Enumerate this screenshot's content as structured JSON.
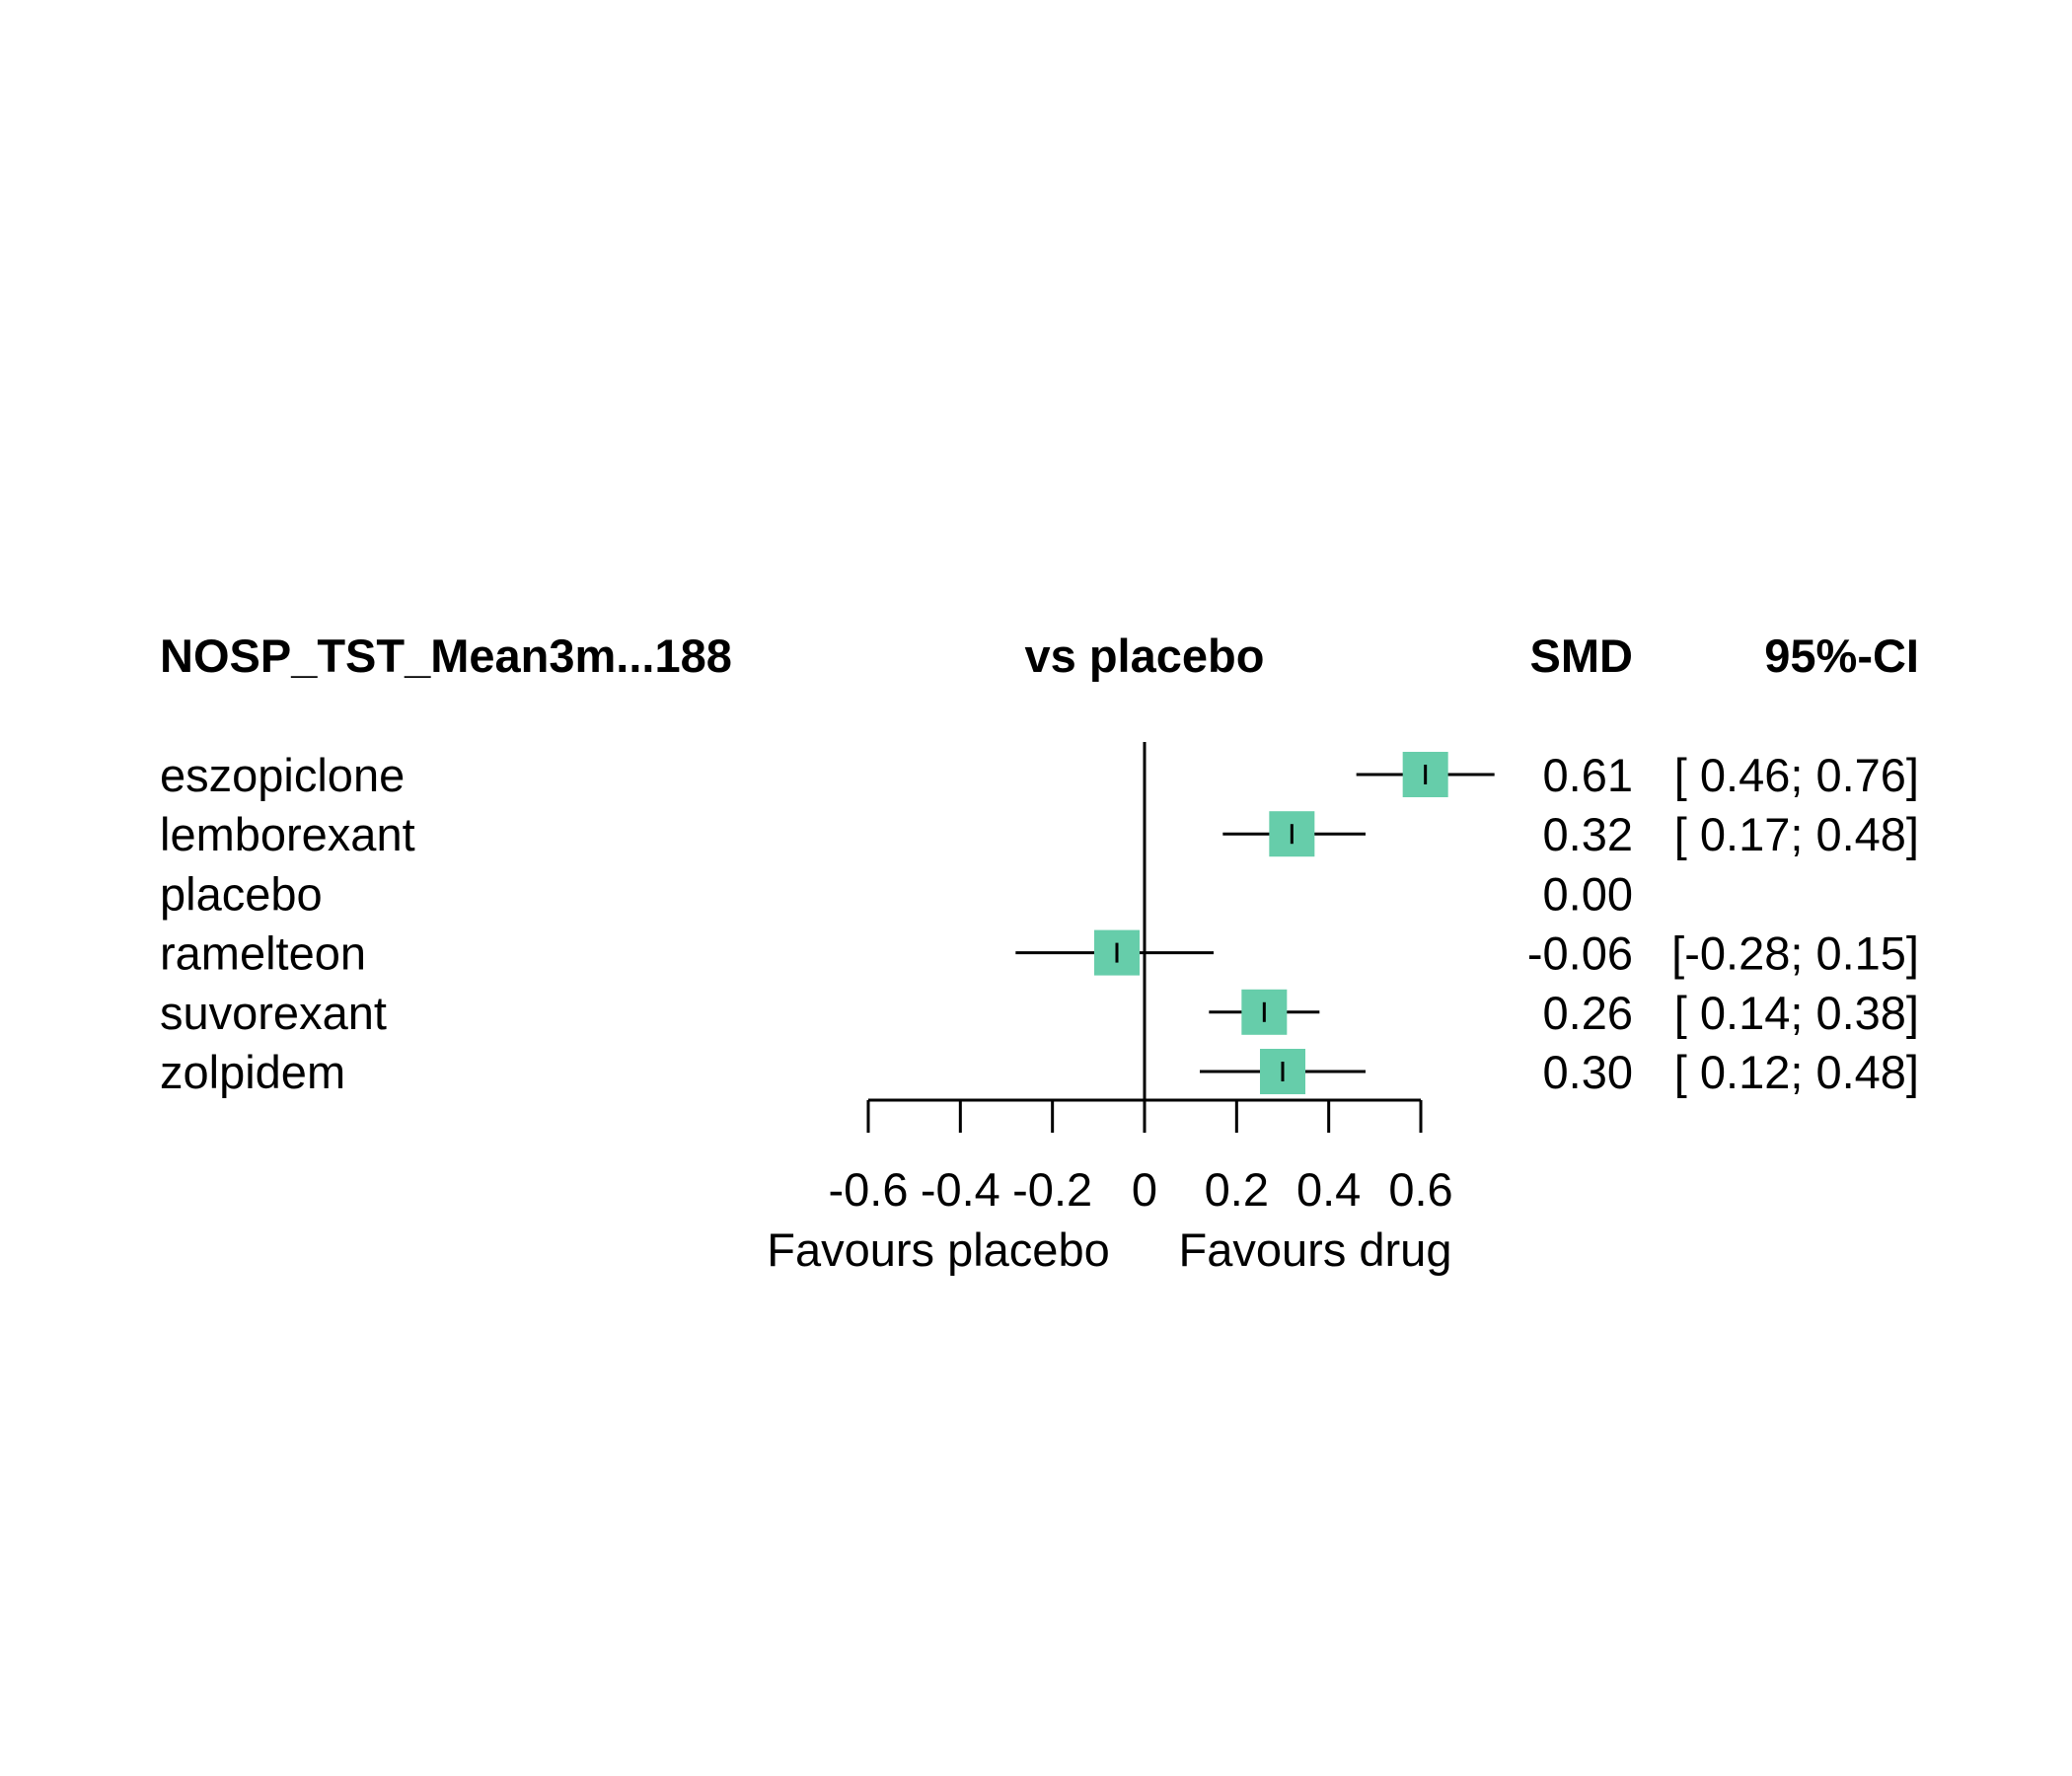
{
  "chart_data": {
    "type": "forest",
    "headers": {
      "study": "NOSP_TST_Mean3m...188",
      "comparison": "vs placebo",
      "estimate": "SMD",
      "ci": "95%-CI"
    },
    "rows": [
      {
        "label": "eszopiclone",
        "smd": 0.61,
        "lower": 0.46,
        "upper": 0.76,
        "smd_text": "0.61",
        "ci_text": "[ 0.46; 0.76]"
      },
      {
        "label": "lemborexant",
        "smd": 0.32,
        "lower": 0.17,
        "upper": 0.48,
        "smd_text": "0.32",
        "ci_text": "[ 0.17; 0.48]"
      },
      {
        "label": "placebo",
        "smd": 0.0,
        "lower": null,
        "upper": null,
        "smd_text": "0.00",
        "ci_text": ""
      },
      {
        "label": "ramelteon",
        "smd": -0.06,
        "lower": -0.28,
        "upper": 0.15,
        "smd_text": "-0.06",
        "ci_text": "[-0.28; 0.15]"
      },
      {
        "label": "suvorexant",
        "smd": 0.26,
        "lower": 0.14,
        "upper": 0.38,
        "smd_text": "0.26",
        "ci_text": "[ 0.14; 0.38]"
      },
      {
        "label": "zolpidem",
        "smd": 0.3,
        "lower": 0.12,
        "upper": 0.48,
        "smd_text": "0.30",
        "ci_text": "[ 0.12; 0.48]"
      }
    ],
    "x_ticks": [
      -0.6,
      -0.4,
      -0.2,
      0,
      0.2,
      0.4,
      0.6
    ],
    "x_tick_labels": [
      "-0.6",
      "-0.4",
      "-0.2",
      "0",
      "0.2",
      "0.4",
      "0.6"
    ],
    "xlim": [
      -0.6,
      0.6
    ],
    "reference_line": 0,
    "favours_left": "Favours placebo",
    "favours_right": "Favours drug",
    "marker_color": "#66CDAA"
  }
}
